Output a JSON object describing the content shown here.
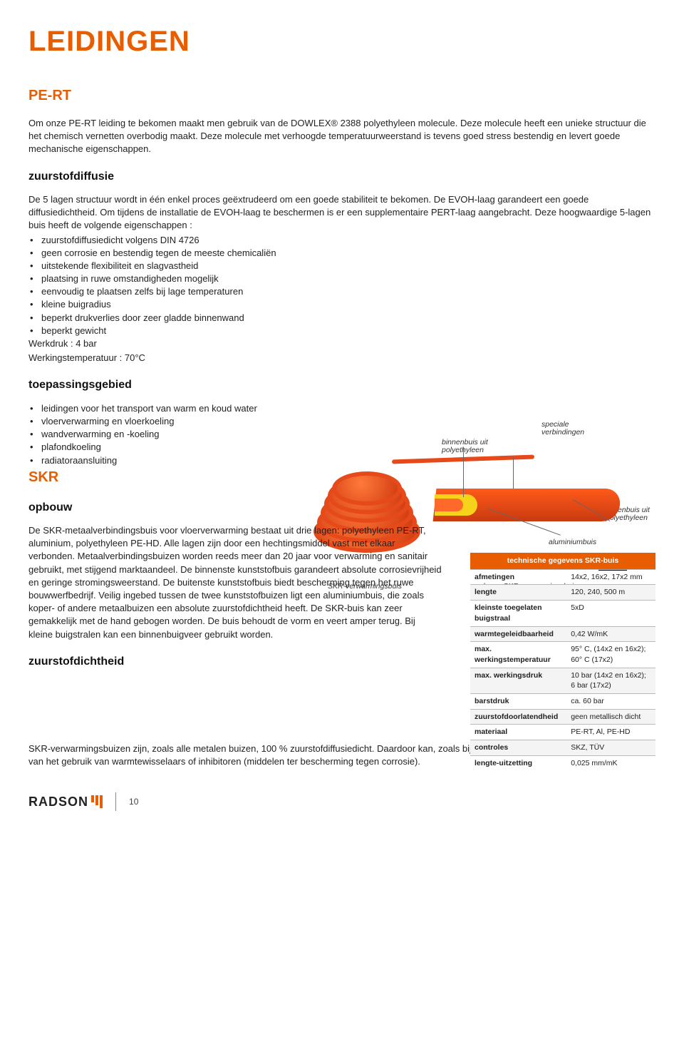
{
  "colors": {
    "accent": "#e85d00",
    "pipe_red": "#e64a1a",
    "pipe_yellow": "#f7d21a",
    "text": "#222222",
    "bg": "#ffffff",
    "table_header_bg": "#e85d00",
    "table_header_fg": "#ffffff",
    "row_alt_bg": "#f4f4f4",
    "grid": "#bbbbbb"
  },
  "typography": {
    "title_fontsize_pt": 30,
    "h2_fontsize_pt": 15,
    "h3_fontsize_pt": 12,
    "body_fontsize_pt": 10,
    "table_fontsize_pt": 8,
    "caption_fontsize_pt": 8
  },
  "page": {
    "main_title": "LEIDINGEN",
    "number": "10"
  },
  "pert": {
    "heading": "PE-RT",
    "intro": "Om onze PE-RT leiding te bekomen maakt men gebruik van de DOWLEX® 2388 polyethyleen molecule. Deze molecule heeft een unieke structuur die het chemisch vernetten overbodig maakt. Deze molecule met verhoogde temperatuurweerstand is tevens goed stress bestendig en levert goede mechanische eigenschappen.",
    "sub_heading": "zuurstofdiffusie",
    "sub_text": "De 5 lagen structuur wordt in één enkel proces geëxtrudeerd om een goede stabiliteit te bekomen. De EVOH-laag garandeert een goede diffusiedichtheid. Om tijdens de installatie de EVOH-laag te beschermen is er een supplementaire PERT-laag aangebracht. Deze hoogwaardige 5-lagen buis heeft de volgende eigenschappen :",
    "bullets": [
      "zuurstofdiffusiedicht volgens DIN 4726",
      "geen corrosie en bestendig tegen de meeste chemicaliën",
      "uitstekende flexibiliteit en slagvastheid",
      "plaatsing in ruwe omstandigheden mogelijk",
      "eenvoudig te plaatsen zelfs bij lage temperaturen",
      "kleine buigradius",
      "beperkt drukverlies door zeer gladde binnenwand",
      "beperkt gewicht"
    ],
    "werkdruk": "Werkdruk : 4 bar",
    "werktemp": "Werkingstemperatuur : 70°C"
  },
  "toepassing": {
    "heading": "toepassingsgebied",
    "bullets": [
      "leidingen voor het transport van warm en koud water",
      "vloerverwarming en vloerkoeling",
      "wandverwarming en -koeling",
      "plafondkoeling",
      "radiatoraansluiting"
    ]
  },
  "diagram": {
    "coil_caption": "SKR-verwarmingsbuis",
    "cut_caption": "opbouw SKR-verwarmingsbuis",
    "callout_speciale": "speciale\nverbindingen",
    "callout_binnen": "binnenbuis uit\npolyethyleen",
    "callout_buiten": "buitenbuis uit\npolyethyleen",
    "callout_alu": "aluminiumbuis",
    "skr_logo": "SKR"
  },
  "skr": {
    "heading": "SKR",
    "sub_heading": "opbouw",
    "text1": "De SKR-metaalverbindingsbuis voor vloerverwarming bestaat uit drie lagen: polyethyleen PE-RT, aluminium, polyethyleen PE-HD. Alle lagen zijn door een hechtingsmiddel vast met elkaar verbonden. Metaalverbindingsbuizen worden reeds meer dan 20 jaar voor verwarming en sanitair gebruikt, met stijgend marktaandeel. De binnenste kunststofbuis garandeert absolute corrosievrijheid en geringe stromingsweerstand. De buitenste kunststofbuis biedt bescherming tegen het ruwe bouwwerfbedrijf. Veilig ingebed tussen de twee kunststofbuizen ligt een aluminiumbuis, die zoals koper- of andere metaalbuizen een absolute zuurstofdichtheid heeft. De SKR-buis kan zeer gemakkelijk met de hand gebogen worden. De buis behoudt de vorm en veert amper terug. Bij kleine buigstralen kan een binnenbuigveer gebruikt worden.",
    "sub_heading2": "zuurstofdichtheid",
    "text2": "SKR-verwarmingsbuizen zijn, zoals alle metalen buizen, 100 % zuurstofdiffusiedicht. Daardoor kan, zoals bij Difustop-verwarmingsbuis, afgezien worden van het gebruik van warmtewisselaars of inhibitoren (middelen ter bescherming tegen corrosie)."
  },
  "tech_table": {
    "title": "technische gegevens SKR-buis",
    "rows": [
      {
        "k": "afmetingen",
        "v": "14x2, 16x2, 17x2 mm"
      },
      {
        "k": "lengte",
        "v": "120, 240, 500 m"
      },
      {
        "k": "kleinste toegelaten buigstraal",
        "v": "5xD"
      },
      {
        "k": "warmtegeleidbaarheid",
        "v": "0,42 W/mK"
      },
      {
        "k": "max. werkingstemperatuur",
        "v": "95° C, (14x2 en 16x2); 60° C (17x2)"
      },
      {
        "k": "max. werkingsdruk",
        "v": "10 bar (14x2 en 16x2); 6 bar (17x2)"
      },
      {
        "k": "barstdruk",
        "v": "ca. 60 bar"
      },
      {
        "k": "zuurstofdoorlatendheid",
        "v": "geen metallisch dicht"
      },
      {
        "k": "materiaal",
        "v": "PE-RT, Al, PE-HD"
      },
      {
        "k": "controles",
        "v": "SKZ, TÜV"
      },
      {
        "k": "lengte-uitzetting",
        "v": "0,025 mm/mK"
      }
    ]
  },
  "footer": {
    "brand": "RADSON"
  }
}
